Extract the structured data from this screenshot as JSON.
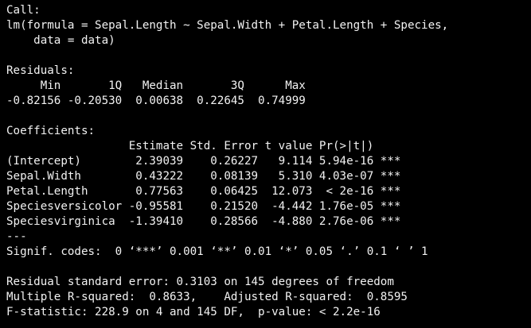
{
  "output": {
    "call_header": "Call:",
    "call_line1": "lm(formula = Sepal.Length ~ Sepal.Width + Petal.Length + Species,",
    "call_line2": "    data = data)",
    "residuals_header": "Residuals:",
    "residuals_col_header": "     Min       1Q   Median       3Q      Max ",
    "residuals_values": "-0.82156 -0.20530  0.00638  0.22645  0.74999 ",
    "coefficients_header": "Coefficients:",
    "coef_col_header": "                  Estimate Std. Error t value Pr(>|t|)    ",
    "coef_rows": [
      "(Intercept)        2.39039    0.26227   9.114 5.94e-16 ***",
      "Sepal.Width        0.43222    0.08139   5.310 4.03e-07 ***",
      "Petal.Length       0.77563    0.06425  12.073  < 2e-16 ***",
      "Speciesversicolor -0.95581    0.21520  -4.442 1.76e-05 ***",
      "Speciesvirginica  -1.39410    0.28566  -4.880 2.76e-06 ***"
    ],
    "separator": "---",
    "signif_codes": "Signif. codes:  0 ‘***’ 0.001 ‘**’ 0.01 ‘*’ 0.05 ‘.’ 0.1 ‘ ’ 1",
    "rse_line": "Residual standard error: 0.3103 on 145 degrees of freedom",
    "r_squared_line": "Multiple R-squared:  0.8633,    Adjusted R-squared:  0.8595 ",
    "f_stat_line": "F-statistic: 228.9 on 4 and 145 DF,  p-value: < 2.2e-16"
  }
}
